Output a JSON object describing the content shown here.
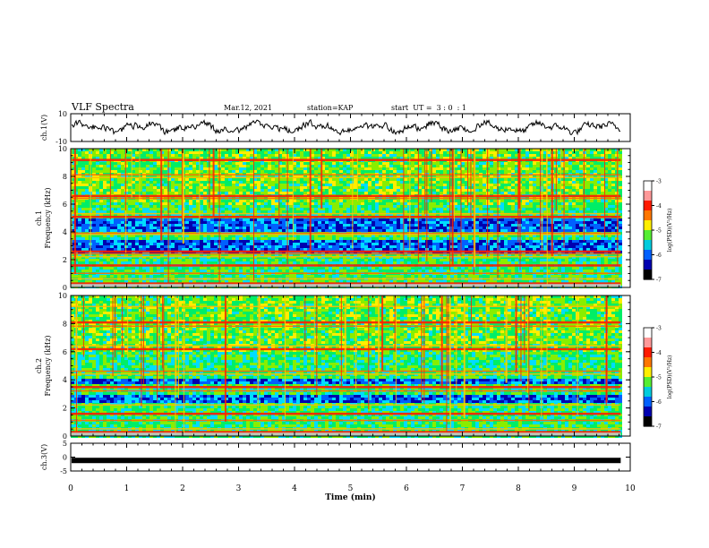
{
  "header": {
    "title": "VLF Spectra",
    "date": "Mar.12, 2021",
    "station": "station=KAP",
    "start_ut": "start  UT =  3 : 0  : 1"
  },
  "chart_data": [
    {
      "type": "line",
      "panel": "ch1-waveform",
      "ylabel": "ch.1(V)",
      "ylim": [
        -10,
        10
      ],
      "yticks": [
        "10",
        "-10"
      ],
      "xlim": [
        0,
        10
      ],
      "x_end": 9.83,
      "baseline": 0,
      "amplitude": 6.5
    },
    {
      "type": "heatmap",
      "panel": "ch1-spectrogram",
      "ylabel": [
        "ch.1",
        "Frequency  (kHz)"
      ],
      "ylim": [
        0,
        10
      ],
      "yticks": [
        "0",
        "2",
        "4",
        "6",
        "8",
        "10"
      ],
      "xlim": [
        0,
        10
      ],
      "x_end": 9.83,
      "lines_khz": [
        0.3,
        0.6,
        1.0,
        1.6,
        2.2,
        2.4,
        2.6,
        3.8,
        3.9,
        5.1,
        5.3,
        6.4,
        6.6,
        7.9,
        8.1,
        9.2
      ],
      "quiet_bands_khz": [
        [
          2.6,
          3.6
        ],
        [
          4.1,
          5.0
        ]
      ],
      "colorbar": {
        "label": "log(PSD)(V²/Hz)",
        "range": [
          -7,
          -3
        ],
        "ticks": [
          "-3",
          "-4",
          "-5",
          "-6",
          "-7"
        ]
      }
    },
    {
      "type": "heatmap",
      "panel": "ch2-spectrogram",
      "ylabel": [
        "ch.2",
        "Frequency  (kHz)"
      ],
      "ylim": [
        0,
        10
      ],
      "yticks": [
        "0",
        "2",
        "4",
        "6",
        "8",
        "10"
      ],
      "xlim": [
        0,
        10
      ],
      "x_end": 9.83,
      "lines_khz": [
        0.3,
        0.5,
        1.1,
        1.6,
        2.2,
        3.2,
        3.5,
        4.4,
        4.6,
        6.2,
        6.4,
        7.8,
        8.1,
        9.2
      ],
      "quiet_bands_khz": [
        [
          2.4,
          3.1
        ],
        [
          3.7,
          4.2
        ]
      ],
      "colorbar": {
        "label": "log(PSD)(V²/Hz)",
        "range": [
          -7,
          -3
        ],
        "ticks": [
          "-3",
          "-4",
          "-5",
          "-6",
          "-7"
        ]
      }
    },
    {
      "type": "line",
      "panel": "ch3-waveform",
      "ylabel": "ch.3(V)",
      "ylim": [
        -5,
        5
      ],
      "yticks": [
        "5",
        "0",
        "-5"
      ],
      "xlim": [
        0,
        10
      ],
      "x_end": 9.83,
      "baseline": -1.2,
      "amplitude": 0.3
    }
  ],
  "xaxis": {
    "label": "Time  (min)",
    "ticks": [
      "0",
      "1",
      "2",
      "3",
      "4",
      "5",
      "6",
      "7",
      "8",
      "9",
      "10"
    ]
  },
  "colors": {
    "spectro": [
      "#0000b0",
      "#0060ff",
      "#00ddff",
      "#00ee66",
      "#88ee00",
      "#ffee00",
      "#ff9900",
      "#ff1a00"
    ]
  }
}
